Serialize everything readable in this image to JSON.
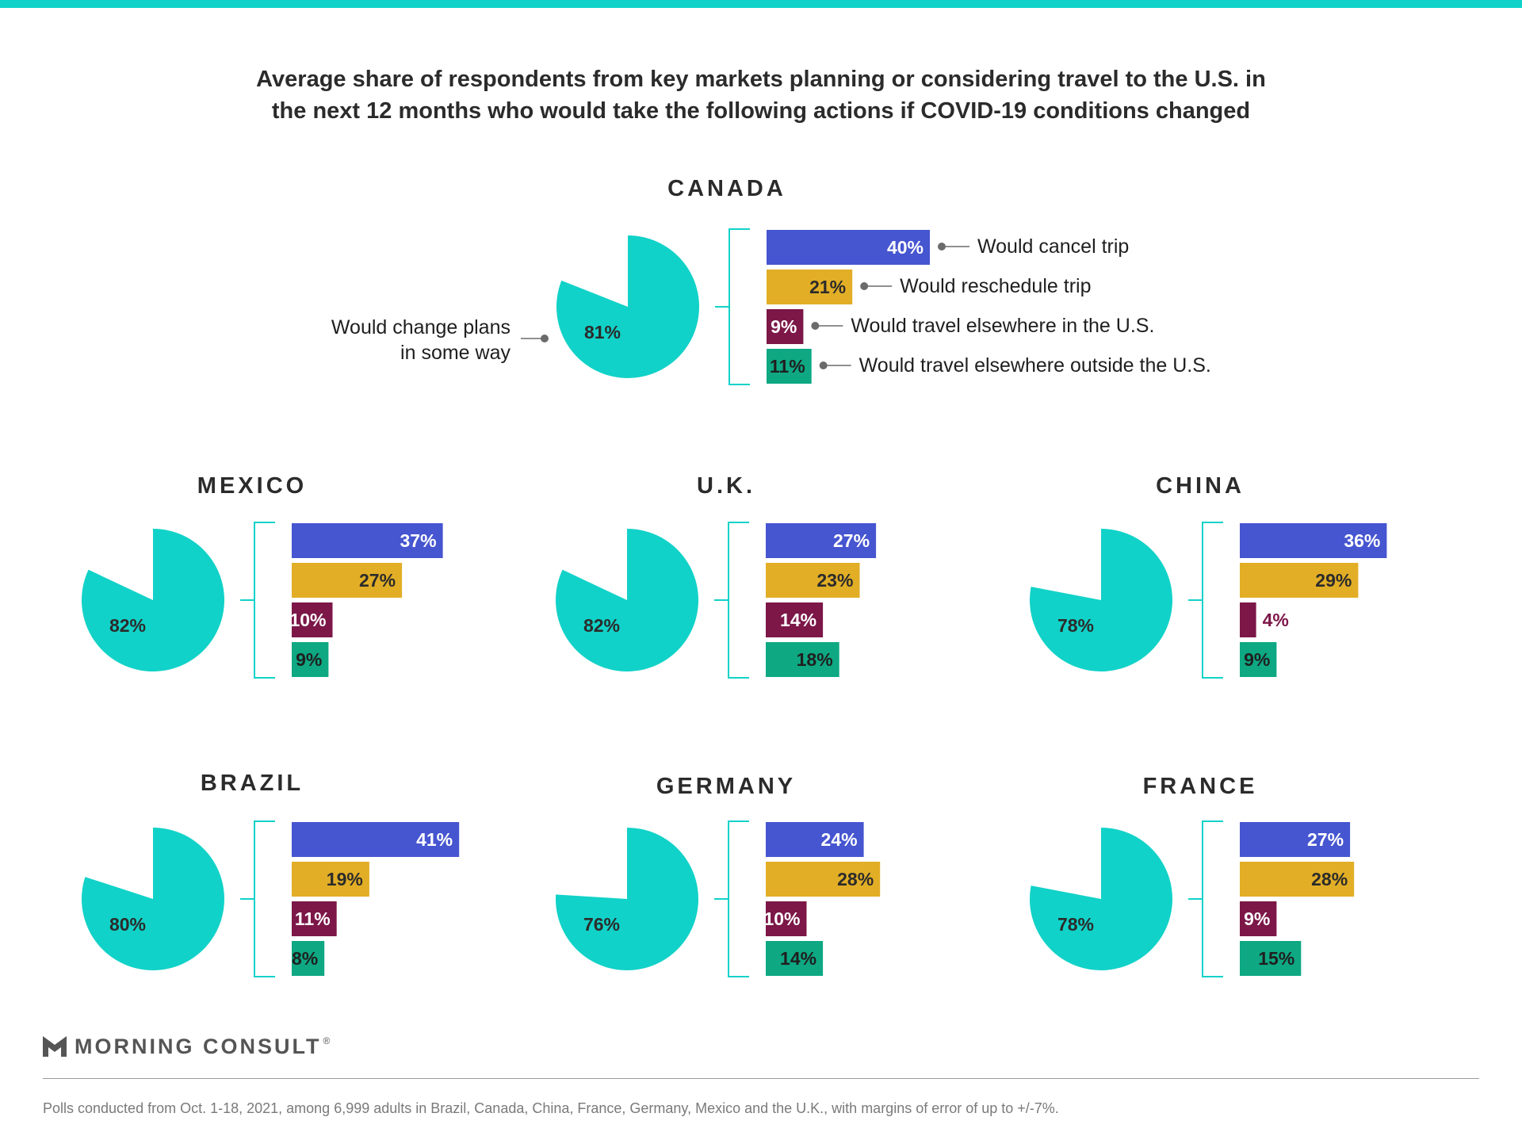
{
  "title_lines": [
    "Average share of respondents from key markets planning or considering travel to the U.S. in",
    "the next 12 months who would take the following actions if COVID-19 conditions changed"
  ],
  "colors": {
    "top_bar": "#11d2c8",
    "pie": "#11d2c8",
    "bracket": "#11d2c8",
    "cancel": "#4655d0",
    "reschedule": "#e2ae26",
    "elsewhere_us": "#7c1748",
    "elsewhere_outside": "#0ea883"
  },
  "chart_data": {
    "type": "pie",
    "series_labels": {
      "pie": "Would change plans in some way",
      "bars": [
        "Would cancel trip",
        "Would reschedule trip",
        "Would travel elsewhere in the U.S.",
        "Would travel elsewhere outside the U.S."
      ]
    },
    "countries": [
      {
        "name": "CANADA",
        "change_plans": 81,
        "bars": [
          40,
          21,
          9,
          11
        ]
      },
      {
        "name": "MEXICO",
        "change_plans": 82,
        "bars": [
          37,
          27,
          10,
          9
        ]
      },
      {
        "name": "U.K.",
        "change_plans": 82,
        "bars": [
          27,
          23,
          14,
          18
        ]
      },
      {
        "name": "CHINA",
        "change_plans": 78,
        "bars": [
          36,
          29,
          4,
          9
        ]
      },
      {
        "name": "BRAZIL",
        "change_plans": 80,
        "bars": [
          41,
          19,
          11,
          8
        ]
      },
      {
        "name": "GERMANY",
        "change_plans": 76,
        "bars": [
          24,
          28,
          10,
          14
        ]
      },
      {
        "name": "FRANCE",
        "change_plans": 78,
        "bars": [
          27,
          28,
          9,
          15
        ]
      }
    ]
  },
  "brand": {
    "name": "MORNING CONSULT",
    "mark": "®"
  },
  "footer_note": "Polls conducted from Oct. 1-18, 2021, among 6,999 adults in Brazil, Canada, China, France, Germany, Mexico and the U.K., with margins of error of up to +/-7%."
}
